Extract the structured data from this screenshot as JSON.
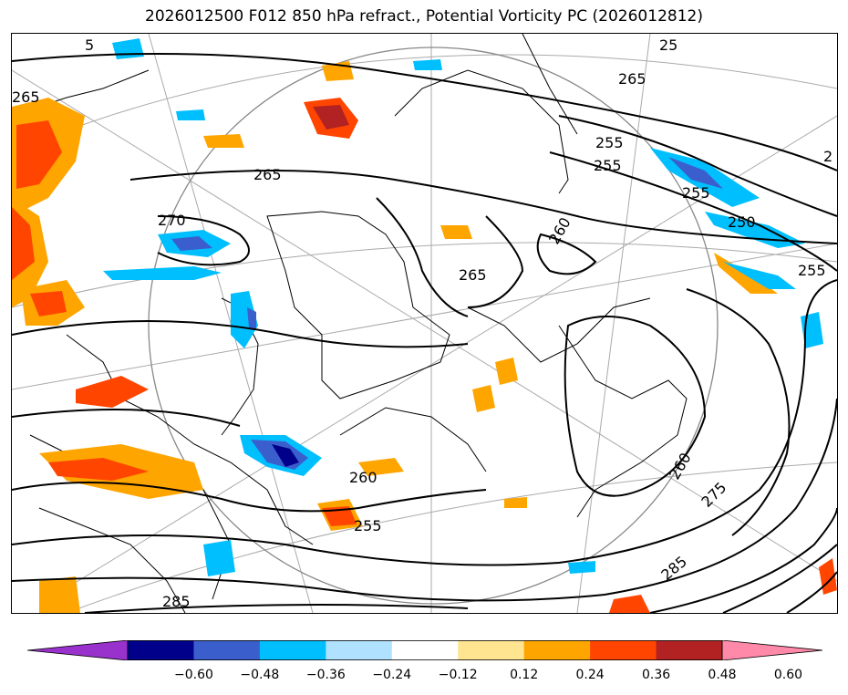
{
  "title": "2026012500 F012 850 hPa refract., Potential Vorticity PC (2026012812)",
  "colorbar": {
    "ticks": [
      "−0.60",
      "−0.48",
      "−0.36",
      "−0.24",
      "−0.12",
      "0.12",
      "0.24",
      "0.36",
      "0.48",
      "0.60"
    ],
    "colors": [
      "#9932cc",
      "#00008b",
      "#3a5fcd",
      "#00bfff",
      "#b0e2ff",
      "#ffffff",
      "#ffe58f",
      "#ffa500",
      "#ff4500",
      "#b22222",
      "#ff89a8"
    ]
  },
  "contour_labels": [
    "265",
    "265",
    "255",
    "255",
    "255",
    "250",
    "265",
    "270",
    "260",
    "260",
    "265",
    "260",
    "255",
    "275",
    "285",
    "285",
    "255",
    "5",
    "25",
    "2"
  ]
}
